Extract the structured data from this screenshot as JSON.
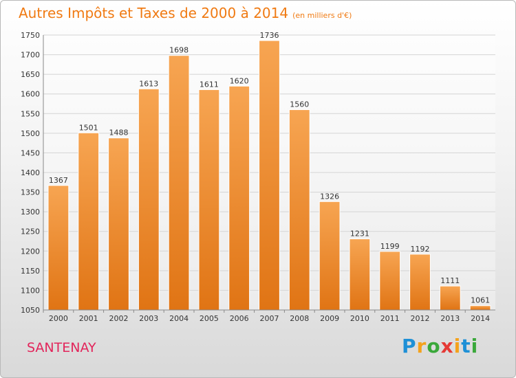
{
  "chart_data": {
    "type": "bar",
    "title": "Autres Impôts et Taxes de 2000 à 2014",
    "subtitle": "(en milliers d'€)",
    "categories": [
      "2000",
      "2001",
      "2002",
      "2003",
      "2004",
      "2005",
      "2006",
      "2007",
      "2008",
      "2009",
      "2010",
      "2011",
      "2012",
      "2013",
      "2014"
    ],
    "values": [
      1367,
      1501,
      1488,
      1613,
      1698,
      1611,
      1620,
      1736,
      1560,
      1326,
      1231,
      1199,
      1192,
      1111,
      1061
    ],
    "value_labels": [
      "1367",
      "1501",
      "1488",
      "1613",
      "1698",
      "1611",
      "1620",
      "1736",
      "1560",
      "1326",
      "1231",
      "1199",
      "1192",
      "1111",
      "1061"
    ],
    "ylim": [
      1050,
      1750
    ],
    "yticks": [
      "1050",
      "1100",
      "1150",
      "1200",
      "1250",
      "1300",
      "1350",
      "1400",
      "1450",
      "1500",
      "1550",
      "1600",
      "1650",
      "1700",
      "1750"
    ],
    "grid": true,
    "bar_color": "#f08a2a",
    "xlabel": "",
    "ylabel": ""
  },
  "footer": {
    "city": "SANTENAY",
    "brand": [
      "P",
      "r",
      "o",
      "x",
      "i",
      "t",
      "i"
    ],
    "brand_colors": [
      "#1e90d6",
      "#f4a21c",
      "#3aa83a",
      "#e53935",
      "#f4a21c",
      "#1e90d6",
      "#3aa83a"
    ]
  }
}
